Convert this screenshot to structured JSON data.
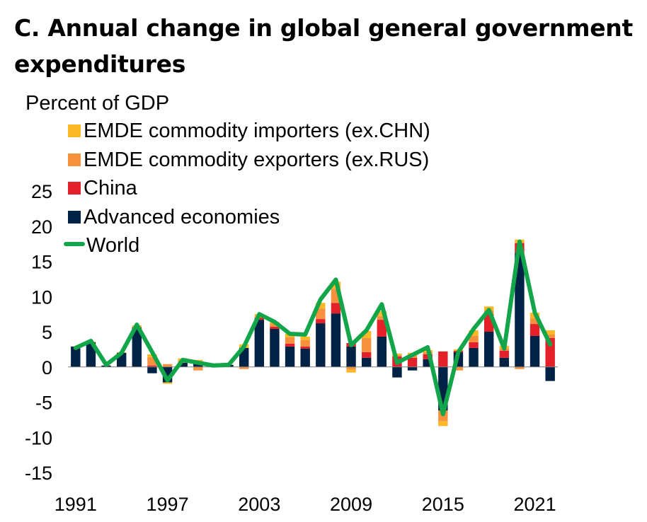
{
  "chart_data": {
    "type": "bar",
    "title": "C. Annual change in global general government expenditures",
    "subtitle": "Percent of GDP",
    "stacked": true,
    "ylim": [
      -15,
      25
    ],
    "yticks": [
      "25",
      "20",
      "15",
      "10",
      "5",
      "0",
      "-5",
      "-10",
      "-15"
    ],
    "ytick_values": [
      25,
      20,
      15,
      10,
      5,
      0,
      -5,
      -10,
      -15
    ],
    "xtick_labels": [
      "1991",
      "1997",
      "2003",
      "2009",
      "2015",
      "2021"
    ],
    "xtick_years": [
      1991,
      1997,
      2003,
      2009,
      2015,
      2021
    ],
    "x": [
      1991,
      1992,
      1993,
      1994,
      1995,
      1996,
      1997,
      1998,
      1999,
      2000,
      2001,
      2002,
      2003,
      2004,
      2005,
      2006,
      2007,
      2008,
      2009,
      2010,
      2011,
      2012,
      2013,
      2014,
      2015,
      2016,
      2017,
      2018,
      2019,
      2020,
      2021,
      2022
    ],
    "legend_placement": "top-left",
    "series": [
      {
        "name": "EMDE commodity importers (ex.CHN)",
        "color": "#FDB827",
        "values": [
          0,
          0.1,
          0,
          0.1,
          0.3,
          0.4,
          -0.2,
          0.3,
          0.2,
          0.1,
          0,
          0.5,
          0.5,
          0.2,
          0.5,
          0.5,
          0.8,
          1.0,
          -0.4,
          1.0,
          0.7,
          0.2,
          0.4,
          0.3,
          -0.7,
          0.2,
          0.8,
          0.6,
          0.4,
          0.5,
          0.8,
          0.6
        ]
      },
      {
        "name": "EMDE commodity exporters (ex.RUS)",
        "color": "#F7913D",
        "values": [
          0,
          0,
          0,
          0,
          0,
          1.2,
          0.4,
          0.3,
          -0.5,
          0,
          0,
          -0.3,
          0,
          0.5,
          0.9,
          0.9,
          1.5,
          2.0,
          -0.4,
          2.0,
          0.5,
          0.2,
          0.3,
          0.3,
          -1.5,
          -0.5,
          0.9,
          0.5,
          0.3,
          -0.3,
          0.8,
          0.5
        ]
      },
      {
        "name": "China",
        "color": "#E4202A",
        "values": [
          0,
          0,
          0,
          0,
          0,
          0.2,
          0,
          0,
          0.1,
          0,
          0,
          0,
          0.3,
          0.3,
          0.4,
          0.3,
          0.6,
          1.5,
          0.5,
          0.8,
          2.4,
          1.5,
          1.3,
          0.7,
          2.2,
          0.2,
          0.8,
          2.5,
          1.0,
          1.4,
          1.7,
          4.1
        ]
      },
      {
        "name": "Advanced economies",
        "color": "#002345",
        "values": [
          2.9,
          3.5,
          0.2,
          2.0,
          5.6,
          -0.9,
          -2.2,
          0.6,
          0.7,
          0.2,
          0.3,
          2.7,
          6.7,
          5.4,
          2.9,
          2.6,
          6.2,
          7.6,
          2.9,
          1.3,
          4.3,
          -1.5,
          -0.5,
          1.1,
          -6.2,
          2.1,
          2.7,
          5.0,
          1.3,
          16.2,
          4.4,
          -2.0
        ]
      },
      {
        "name": "World",
        "color": "#13A54A",
        "type": "line",
        "values": [
          2.7,
          3.7,
          0.3,
          2.0,
          6.0,
          2.1,
          -1.9,
          1.0,
          0.6,
          0.2,
          0.3,
          2.9,
          7.5,
          6.4,
          4.7,
          4.6,
          9.6,
          12.4,
          3.1,
          5.2,
          8.9,
          0.6,
          1.7,
          2.8,
          -6.7,
          2.1,
          5.4,
          8.1,
          2.6,
          17.8,
          7.7,
          3.2
        ]
      }
    ]
  }
}
